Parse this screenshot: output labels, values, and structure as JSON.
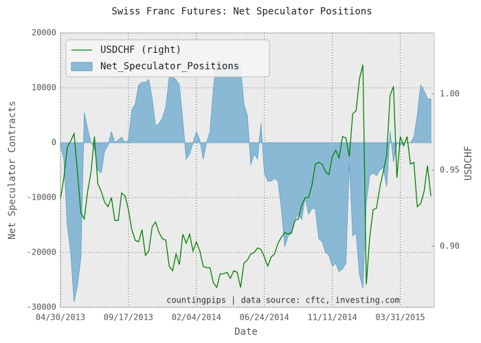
{
  "chart_data": {
    "type": "line",
    "title": "Swiss Franc Futures: Net Speculator Positions",
    "xlabel": "Date",
    "ylabel": "Net Speculator Contracts",
    "y2label": "USDCHF",
    "annotation": "countingpips | data source: cftc, investing.com",
    "grid": true,
    "legend": "upper left",
    "xlim": [
      "04/30/2013",
      "06/09/2015"
    ],
    "xticks": [
      "04/30/2013",
      "09/17/2013",
      "02/04/2014",
      "06/24/2014",
      "11/11/2014",
      "03/31/2015"
    ],
    "ylim": [
      -30000,
      20000
    ],
    "yticks": [
      -30000,
      -20000,
      -10000,
      0,
      10000,
      20000
    ],
    "y2lim": [
      0.86,
      1.04
    ],
    "y2ticks": [
      {
        "value": 0.9,
        "label": "0.90"
      },
      {
        "value": 0.95,
        "label": "0.95"
      },
      {
        "value": 1.0,
        "label": "1.00"
      }
    ],
    "x": [
      "04/30/2013",
      "05/07/2013",
      "05/14/2013",
      "05/21/2013",
      "05/28/2013",
      "06/04/2013",
      "06/11/2013",
      "06/18/2013",
      "06/25/2013",
      "07/02/2013",
      "07/09/2013",
      "07/16/2013",
      "07/23/2013",
      "07/30/2013",
      "08/06/2013",
      "08/13/2013",
      "08/20/2013",
      "08/27/2013",
      "09/03/2013",
      "09/10/2013",
      "09/17/2013",
      "09/24/2013",
      "10/01/2013",
      "10/08/2013",
      "10/15/2013",
      "10/22/2013",
      "10/29/2013",
      "11/05/2013",
      "11/12/2013",
      "11/19/2013",
      "11/26/2013",
      "12/03/2013",
      "12/10/2013",
      "12/17/2013",
      "12/24/2013",
      "12/31/2013",
      "01/07/2014",
      "01/14/2014",
      "01/21/2014",
      "01/28/2014",
      "02/04/2014",
      "02/11/2014",
      "02/18/2014",
      "02/25/2014",
      "03/04/2014",
      "03/11/2014",
      "03/18/2014",
      "03/25/2014",
      "04/01/2014",
      "04/08/2014",
      "04/15/2014",
      "04/22/2014",
      "04/29/2014",
      "05/06/2014",
      "05/13/2014",
      "05/20/2014",
      "05/27/2014",
      "06/03/2014",
      "06/10/2014",
      "06/17/2014",
      "06/24/2014",
      "07/01/2014",
      "07/08/2014",
      "07/15/2014",
      "07/22/2014",
      "07/29/2014",
      "08/05/2014",
      "08/12/2014",
      "08/19/2014",
      "08/26/2014",
      "09/02/2014",
      "09/09/2014",
      "09/16/2014",
      "09/23/2014",
      "09/30/2014",
      "10/07/2014",
      "10/14/2014",
      "10/21/2014",
      "10/28/2014",
      "11/04/2014",
      "11/11/2014",
      "11/18/2014",
      "11/25/2014",
      "12/02/2014",
      "12/09/2014",
      "12/16/2014",
      "12/23/2014",
      "12/30/2014",
      "01/06/2015",
      "01/13/2015",
      "01/20/2015",
      "01/27/2015",
      "02/03/2015",
      "02/10/2015",
      "02/17/2015",
      "02/24/2015",
      "03/03/2015",
      "03/10/2015",
      "03/17/2015",
      "03/24/2015",
      "03/31/2015",
      "04/07/2015",
      "04/14/2015",
      "04/21/2015",
      "04/28/2015",
      "05/05/2015",
      "05/12/2015",
      "05/19/2015",
      "05/26/2015",
      "06/02/2015"
    ],
    "series": [
      {
        "name": "USDCHF (right)",
        "kind": "line",
        "axis": "y2",
        "color": "#008000",
        "values": [
          0.931,
          0.945,
          0.965,
          0.969,
          0.974,
          0.949,
          0.922,
          0.918,
          0.936,
          0.949,
          0.972,
          0.941,
          0.936,
          0.929,
          0.926,
          0.932,
          0.917,
          0.917,
          0.935,
          0.933,
          0.924,
          0.911,
          0.904,
          0.903,
          0.911,
          0.894,
          0.897,
          0.913,
          0.916,
          0.909,
          0.905,
          0.904,
          0.887,
          0.884,
          0.895,
          0.888,
          0.908,
          0.902,
          0.908,
          0.897,
          0.903,
          0.897,
          0.887,
          0.886,
          0.886,
          0.876,
          0.873,
          0.882,
          0.882,
          0.883,
          0.879,
          0.884,
          0.883,
          0.873,
          0.889,
          0.891,
          0.895,
          0.896,
          0.899,
          0.898,
          0.893,
          0.887,
          0.893,
          0.895,
          0.902,
          0.906,
          0.909,
          0.908,
          0.909,
          0.917,
          0.918,
          0.927,
          0.932,
          0.932,
          0.94,
          0.954,
          0.955,
          0.954,
          0.949,
          0.947,
          0.959,
          0.963,
          0.958,
          0.972,
          0.971,
          0.959,
          0.987,
          0.989,
          1.01,
          1.019,
          0.875,
          0.906,
          0.924,
          0.925,
          0.939,
          0.949,
          0.96,
          0.999,
          1.005,
          0.945,
          0.972,
          0.966,
          0.972,
          0.954,
          0.955,
          0.926,
          0.928,
          0.936,
          0.953,
          0.933
        ]
      },
      {
        "name": "Net_Speculator_Positions",
        "kind": "area",
        "color": "#8ab9d6",
        "values": [
          -500,
          -3000,
          -15000,
          -20000,
          -29000,
          -26000,
          -21000,
          5500,
          2500,
          0,
          -1000,
          -5000,
          -5500,
          -1500,
          -500,
          2000,
          0,
          500,
          1000,
          0,
          500,
          6000,
          7000,
          10500,
          11000,
          11000,
          11500,
          8000,
          3000,
          3500,
          4500,
          6500,
          12000,
          12000,
          11500,
          10500,
          4000,
          -3000,
          -2000,
          0,
          2000,
          500,
          -3000,
          0,
          2000,
          10000,
          15000,
          14000,
          15000,
          12000,
          14000,
          15000,
          14000,
          14000,
          7000,
          5000,
          -4000,
          -2000,
          -3000,
          3500,
          -5500,
          -7000,
          -7000,
          -6500,
          -7000,
          -12000,
          -19000,
          -17000,
          -16500,
          -14000,
          -13000,
          -14000,
          -10000,
          -13000,
          -12000,
          -12000,
          -17500,
          -18000,
          -20000,
          -20500,
          -22500,
          -22000,
          -23500,
          -23000,
          -22000,
          -3500,
          -17000,
          -16500,
          -24000,
          -26500,
          -11000,
          -6000,
          -5500,
          -6000,
          -5000,
          -4500,
          -8000,
          2000,
          -3500,
          0,
          -500,
          0,
          0,
          0,
          1000,
          5000,
          10500,
          9500,
          8000,
          8000
        ]
      }
    ]
  }
}
